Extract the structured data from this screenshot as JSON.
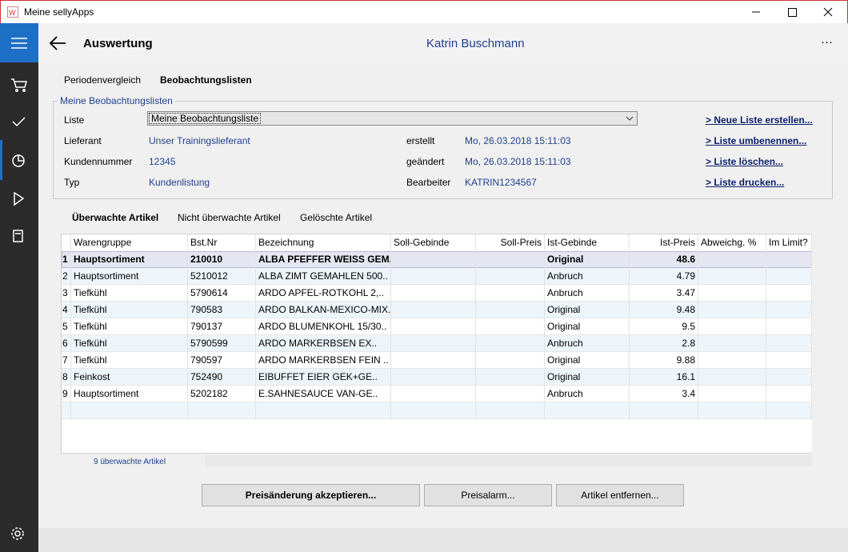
{
  "window": {
    "title": "Meine sellyApps"
  },
  "header": {
    "title": "Auswertung",
    "user": "Katrin Buschmann"
  },
  "tabs": [
    "Periodenvergleich",
    "Beobachtungslisten"
  ],
  "group": {
    "title": "Meine Beobachtungslisten",
    "fields": [
      {
        "label": "Liste",
        "value": "Meine Beobachtungsliste"
      },
      {
        "label": "Lieferant",
        "value": "Unser Trainingslieferant"
      },
      {
        "label": "Kundennummer",
        "value": "12345"
      },
      {
        "label": "Typ",
        "value": "Kundenlistung"
      }
    ],
    "meta": [
      {
        "label": "erstellt",
        "value": "Mo, 26.03.2018 15:11:03"
      },
      {
        "label": "geändert",
        "value": "Mo, 26.03.2018 15:11:03"
      },
      {
        "label": "Bearbeiter",
        "value": "KATRIN1234567"
      }
    ],
    "links": [
      "> Neue Liste erstellen...",
      "> Liste umbenennen...",
      "> Liste löschen...",
      "> Liste drucken..."
    ]
  },
  "subtabs": [
    "Überwachte Artikel",
    "Nicht überwachte Artikel",
    "Gelöschte Artikel"
  ],
  "table": {
    "columns": [
      "Warengruppe",
      "Bst.Nr",
      "Bezeichnung",
      "Soll-Gebinde",
      "Soll-Preis",
      "Ist-Gebinde",
      "Ist-Preis",
      "Abweichg. %",
      "Im Limit?"
    ],
    "rows": [
      {
        "nr": "1",
        "warengruppe": "Hauptsortiment",
        "bstnr": "210010",
        "bezeichnung": "ALBA PFEFFER WEISS GEM..",
        "ist_gebinde": "Original",
        "ist_preis": "48.6"
      },
      {
        "nr": "2",
        "warengruppe": "Hauptsortiment",
        "bstnr": "5210012",
        "bezeichnung": "ALBA ZIMT GEMAHLEN 500..",
        "ist_gebinde": "Anbruch",
        "ist_preis": "4.79"
      },
      {
        "nr": "3",
        "warengruppe": "Tiefkühl",
        "bstnr": "5790614",
        "bezeichnung": "ARDO APFEL-ROTKOHL 2,..",
        "ist_gebinde": "Anbruch",
        "ist_preis": "3.47"
      },
      {
        "nr": "4",
        "warengruppe": "Tiefkühl",
        "bstnr": "790583",
        "bezeichnung": "ARDO BALKAN-MEXICO-MIX..",
        "ist_gebinde": "Original",
        "ist_preis": "9.48"
      },
      {
        "nr": "5",
        "warengruppe": "Tiefkühl",
        "bstnr": "790137",
        "bezeichnung": "ARDO BLUMENKOHL 15/30..",
        "ist_gebinde": "Original",
        "ist_preis": "9.5"
      },
      {
        "nr": "6",
        "warengruppe": "Tiefkühl",
        "bstnr": "5790599",
        "bezeichnung": "ARDO MARKERBSEN EX..",
        "ist_gebinde": "Anbruch",
        "ist_preis": "2.8"
      },
      {
        "nr": "7",
        "warengruppe": "Tiefkühl",
        "bstnr": "790597",
        "bezeichnung": "ARDO MARKERBSEN FEIN ..",
        "ist_gebinde": "Original",
        "ist_preis": "9.88"
      },
      {
        "nr": "8",
        "warengruppe": "Feinkost",
        "bstnr": "752490",
        "bezeichnung": "EIBUFFET EIER GEK+GE..",
        "ist_gebinde": "Original",
        "ist_preis": "16.1"
      },
      {
        "nr": "9",
        "warengruppe": "Hauptsortiment",
        "bstnr": "5202182",
        "bezeichnung": "E.SAHNESAUCE VAN-GE..",
        "ist_gebinde": "Anbruch",
        "ist_preis": "3.4"
      }
    ]
  },
  "footer": {
    "count": "9 überwachte Artikel"
  },
  "buttons": [
    "Preisänderung akzeptieren...",
    "Preisalarm...",
    "Artikel entfernen..."
  ]
}
